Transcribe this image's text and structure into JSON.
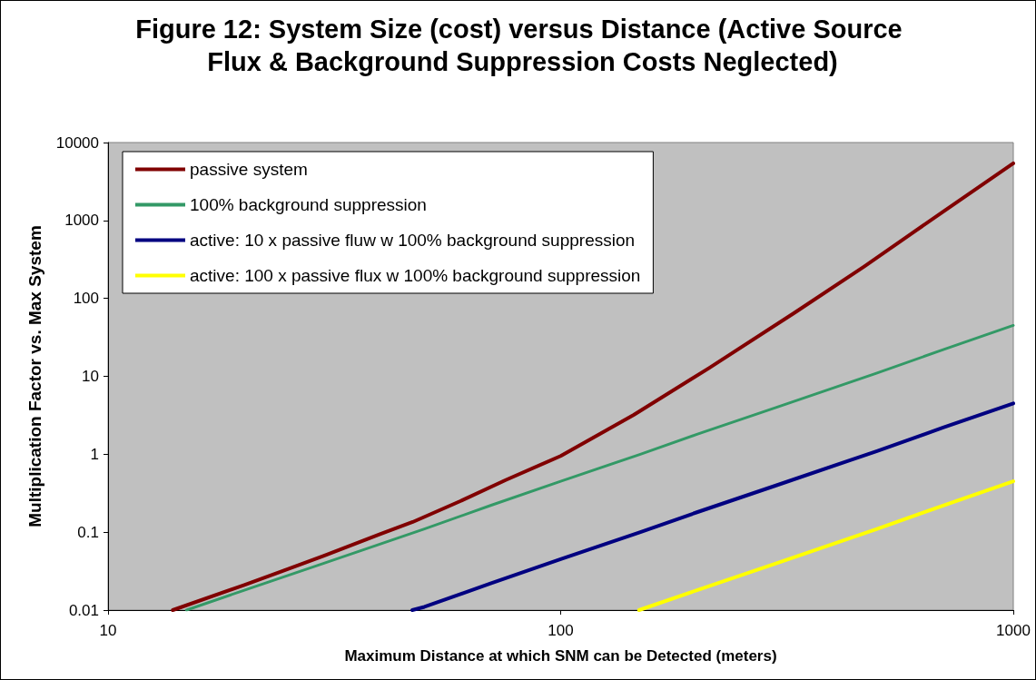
{
  "chart_data": {
    "type": "line",
    "title": "Figure 12: System Size (cost) versus Distance (Active Source Flux & Background Suppression Costs Neglected)",
    "xlabel": "Maximum Distance at which SNM can be Detected (meters)",
    "ylabel": "Multiplication Factor vs. Max System",
    "log": "xy",
    "xlim": [
      10,
      1000
    ],
    "xticks": [
      10,
      100,
      1000
    ],
    "ylim": [
      0.01,
      10000
    ],
    "yticks": [
      0.01,
      0.1,
      1,
      10,
      100,
      1000,
      10000
    ],
    "grid": false,
    "legend": "top left",
    "marker": "none",
    "line_style": "solid",
    "series": [
      {
        "name": "passive system",
        "color": "#800000",
        "x": [
          13.9,
          20,
          24.4,
          30,
          40,
          47.1,
          60,
          75.8,
          100,
          145,
          212,
          328,
          469,
          700,
          1000
        ],
        "values": [
          0.01,
          0.021,
          0.032,
          0.05,
          0.095,
          0.135,
          0.25,
          0.47,
          0.95,
          3.2,
          12.6,
          65,
          258,
          1300,
          5400
        ]
      },
      {
        "name": "100% background suppression",
        "color": "#339966",
        "x": [
          14.9,
          20,
          30,
          50,
          70,
          100,
          150,
          200,
          300,
          500,
          700,
          1000
        ],
        "values": [
          0.01,
          0.018,
          0.04,
          0.11,
          0.22,
          0.45,
          1.0,
          1.8,
          4.0,
          11,
          22,
          45
        ]
      },
      {
        "name": "active: 10 x passive fluw w 100% background suppression",
        "color": "#000080",
        "x": [
          47,
          50,
          70,
          100,
          150,
          200,
          300,
          500,
          700,
          1000
        ],
        "values": [
          0.01,
          0.011,
          0.022,
          0.045,
          0.1,
          0.18,
          0.4,
          1.1,
          2.2,
          4.5
        ]
      },
      {
        "name": "active: 100 x passive flux w 100% background suppression",
        "color": "#ffff00",
        "x": [
          149,
          200,
          300,
          500,
          700,
          1000
        ],
        "values": [
          0.01,
          0.018,
          0.04,
          0.11,
          0.22,
          0.45
        ]
      }
    ]
  }
}
